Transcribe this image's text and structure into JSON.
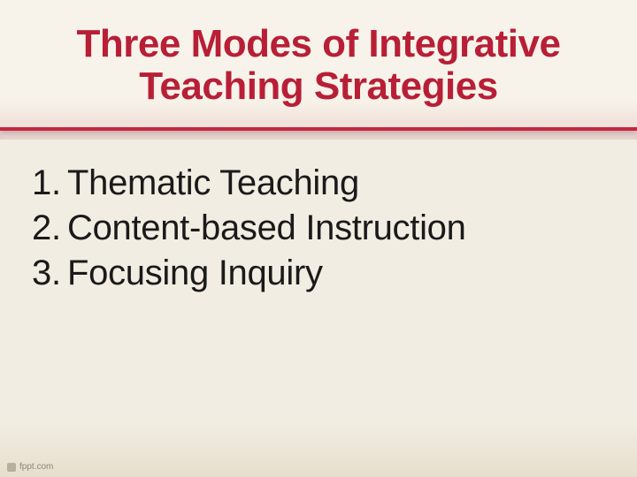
{
  "slide": {
    "title_line1": "Three Modes of Integrative",
    "title_line2": "Teaching Strategies",
    "title_color": "#b81f36",
    "title_fontsize": 44,
    "title_fontweight": 700,
    "header": {
      "background_top": "#f7f3ea",
      "background_bottom": "#f0e0d8",
      "border_color": "#c6253e",
      "border_width": 4,
      "height": 148
    },
    "body_background_top": "#f2ede2",
    "body_background_bottom": "#e6dfce",
    "items": [
      {
        "number": "1.",
        "text": "Thematic Teaching"
      },
      {
        "number": "2.",
        "text": "Content-based Instruction"
      },
      {
        "number": "3.",
        "text": "Focusing Inquiry"
      }
    ],
    "item_fontsize": 40,
    "item_color": "#1a1a1a",
    "footer": {
      "text": "fppt.com",
      "color": "#8a8578",
      "fontsize": 10
    }
  }
}
